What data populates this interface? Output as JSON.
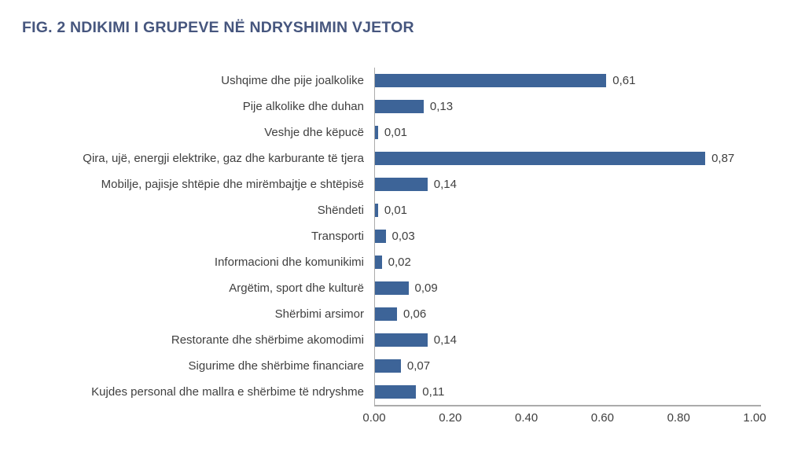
{
  "title": "FIG. 2 NDIKIMI I GRUPEVE NË NDRYSHIMIN VJETOR",
  "colors": {
    "bar": "#3d6498",
    "title": "#46567e",
    "axis_line": "#ababab",
    "text": "#3f3f3f"
  },
  "chart_data": {
    "type": "bar",
    "orientation": "horizontal",
    "title": "FIG. 2 NDIKIMI I GRUPEVE NË NDRYSHIMIN VJETOR",
    "xlabel": "",
    "ylabel": "",
    "grid": false,
    "legend": false,
    "xlim": [
      0,
      1.0
    ],
    "x_ticks": [
      "0.00",
      "0.20",
      "0.40",
      "0.60",
      "0.80",
      "1.00"
    ],
    "categories": [
      "Ushqime dhe pije joalkolike",
      "Pije alkolike dhe duhan",
      "Veshje dhe këpucë",
      "Qira, ujë, energji elektrike, gaz dhe karburante të tjera",
      "Mobilje, pajisje shtëpie dhe mirëmbajtje e shtëpisë",
      "Shëndeti",
      "Transporti",
      "Informacioni dhe komunikimi",
      "Argëtim, sport dhe kulturë",
      "Shërbimi arsimor",
      "Restorante dhe shërbime akomodimi",
      "Sigurime dhe shërbime financiare",
      "Kujdes personal dhe mallra e shërbime të ndryshme"
    ],
    "values": [
      0.61,
      0.13,
      0.01,
      0.87,
      0.14,
      0.01,
      0.03,
      0.02,
      0.09,
      0.06,
      0.14,
      0.07,
      0.11
    ],
    "value_labels": [
      "0,61",
      "0,13",
      "0,01",
      "0,87",
      "0,14",
      "0,01",
      "0,03",
      "0,02",
      "0,09",
      "0,06",
      "0,14",
      "0,07",
      "0,11"
    ]
  }
}
